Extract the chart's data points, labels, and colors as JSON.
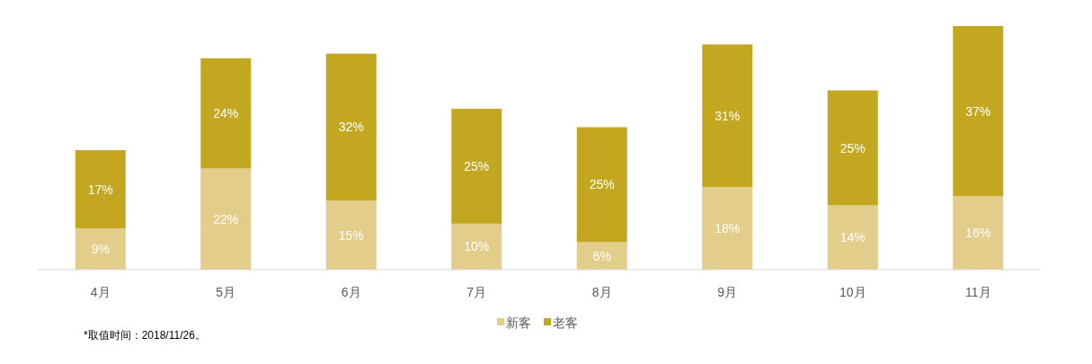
{
  "chart_data": {
    "type": "bar",
    "stacked": true,
    "legend": "bottom",
    "categories": [
      "4月",
      "5月",
      "6月",
      "7月",
      "8月",
      "9月",
      "10月",
      "11月"
    ],
    "series": [
      {
        "name": "新客",
        "color": "#e3cd8a",
        "values": [
          9,
          22,
          15,
          10,
          6,
          18,
          14,
          16
        ],
        "value_labels": [
          "9%",
          "22%",
          "15%",
          "10%",
          "6%",
          "18%",
          "14%",
          "16%"
        ]
      },
      {
        "name": "老客",
        "color": "#c4a720",
        "values": [
          17,
          24,
          32,
          25,
          25,
          31,
          25,
          37
        ],
        "value_labels": [
          "17%",
          "24%",
          "32%",
          "25%",
          "25%",
          "31%",
          "25%",
          "37%"
        ]
      }
    ],
    "annotations": [
      "*取值时间：2018/11/26。"
    ]
  }
}
